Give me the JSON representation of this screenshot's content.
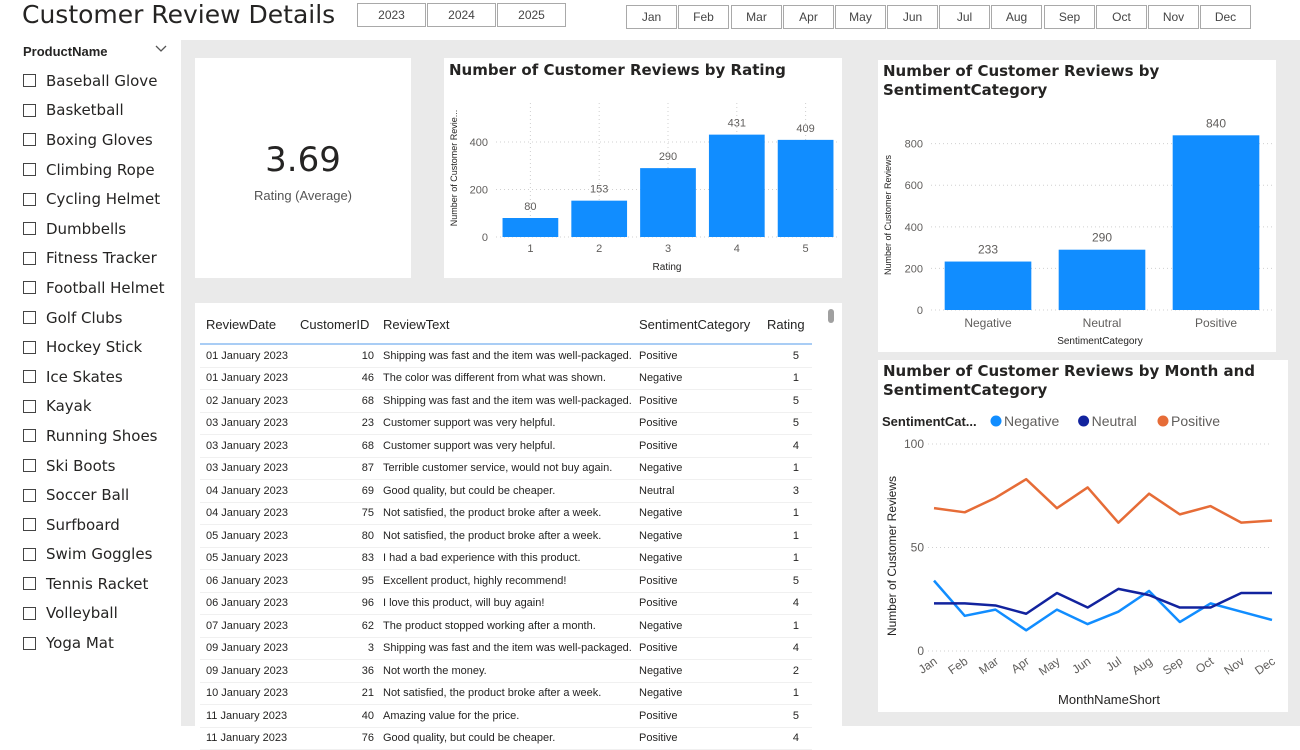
{
  "page": {
    "title": "Customer Review Details"
  },
  "years": [
    "2023",
    "2024",
    "2025"
  ],
  "months": [
    "Jan",
    "Feb",
    "Mar",
    "Apr",
    "May",
    "Jun",
    "Jul",
    "Aug",
    "Sep",
    "Oct",
    "Nov",
    "Dec"
  ],
  "slicer": {
    "title": "ProductName",
    "items": [
      "Baseball Glove",
      "Basketball",
      "Boxing Gloves",
      "Climbing Rope",
      "Cycling Helmet",
      "Dumbbells",
      "Fitness Tracker",
      "Football Helmet",
      "Golf Clubs",
      "Hockey Stick",
      "Ice Skates",
      "Kayak",
      "Running Shoes",
      "Ski Boots",
      "Soccer Ball",
      "Surfboard",
      "Swim Goggles",
      "Tennis Racket",
      "Volleyball",
      "Yoga Mat"
    ]
  },
  "kpi": {
    "value": "3.69",
    "label": "Rating (Average)"
  },
  "table": {
    "columns": [
      "ReviewDate",
      "CustomerID",
      "ReviewText",
      "SentimentCategory",
      "Rating"
    ],
    "rows": [
      [
        "01 January 2023",
        "10",
        "Shipping was fast and the item was well-packaged.",
        "Positive",
        "5"
      ],
      [
        "01 January 2023",
        "46",
        "The color was different from what was shown.",
        "Negative",
        "1"
      ],
      [
        "02 January 2023",
        "68",
        "Shipping was fast and the item was well-packaged.",
        "Positive",
        "5"
      ],
      [
        "03 January 2023",
        "23",
        "Customer support was very helpful.",
        "Positive",
        "5"
      ],
      [
        "03 January 2023",
        "68",
        "Customer support was very helpful.",
        "Positive",
        "4"
      ],
      [
        "03 January 2023",
        "87",
        "Terrible customer service, would not buy again.",
        "Negative",
        "1"
      ],
      [
        "04 January 2023",
        "69",
        "Good quality, but could be cheaper.",
        "Neutral",
        "3"
      ],
      [
        "04 January 2023",
        "75",
        "Not satisfied, the product broke after a week.",
        "Negative",
        "1"
      ],
      [
        "05 January 2023",
        "80",
        "Not satisfied, the product broke after a week.",
        "Negative",
        "1"
      ],
      [
        "05 January 2023",
        "83",
        "I had a bad experience with this product.",
        "Negative",
        "1"
      ],
      [
        "06 January 2023",
        "95",
        "Excellent product, highly recommend!",
        "Positive",
        "5"
      ],
      [
        "06 January 2023",
        "96",
        "I love this product, will buy again!",
        "Positive",
        "4"
      ],
      [
        "07 January 2023",
        "62",
        "The product stopped working after a month.",
        "Negative",
        "1"
      ],
      [
        "09 January 2023",
        "3",
        "Shipping was fast and the item was well-packaged.",
        "Positive",
        "4"
      ],
      [
        "09 January 2023",
        "36",
        "Not worth the money.",
        "Negative",
        "2"
      ],
      [
        "10 January 2023",
        "21",
        "Not satisfied, the product broke after a week.",
        "Negative",
        "1"
      ],
      [
        "11 January 2023",
        "40",
        "Amazing value for the price.",
        "Positive",
        "5"
      ],
      [
        "11 January 2023",
        "76",
        "Good quality, but could be cheaper.",
        "Positive",
        "4"
      ]
    ]
  },
  "chart_data": [
    {
      "type": "bar",
      "title": "Number of Customer Reviews by Rating",
      "xlabel": "Rating",
      "ylabel": "Number of Customer Revie...",
      "categories": [
        "1",
        "2",
        "3",
        "4",
        "5"
      ],
      "values": [
        80,
        153,
        290,
        431,
        409
      ],
      "yticks": [
        "0",
        "200",
        "400"
      ],
      "ylim": [
        0,
        480
      ],
      "color": "#118dff"
    },
    {
      "type": "bar",
      "title": "Number of Customer Reviews by SentimentCategory",
      "title_line1": "Number of Customer Reviews by",
      "title_line2": "SentimentCategory",
      "xlabel": "SentimentCategory",
      "ylabel": "Number of Customer Reviews",
      "categories": [
        "Negative",
        "Neutral",
        "Positive"
      ],
      "values": [
        233,
        290,
        840
      ],
      "yticks": [
        "0",
        "200",
        "400",
        "600",
        "800"
      ],
      "ylim": [
        0,
        880
      ],
      "color": "#118dff"
    },
    {
      "type": "line",
      "title": "Number of Customer Reviews by Month and SentimentCategory",
      "title_line1": "Number of Customer Reviews by Month and",
      "title_line2": "SentimentCategory",
      "xlabel": "MonthNameShort",
      "ylabel": "Number of Customer Reviews",
      "legend_title": "SentimentCat...",
      "categories": [
        "Jan",
        "Feb",
        "Mar",
        "Apr",
        "May",
        "Jun",
        "Jul",
        "Aug",
        "Sep",
        "Oct",
        "Nov",
        "Dec"
      ],
      "yticks": [
        "0",
        "50",
        "100"
      ],
      "ylim": [
        0,
        100
      ],
      "series": [
        {
          "name": "Negative",
          "color": "#118dff",
          "values": [
            34,
            17,
            20,
            10,
            20,
            13,
            19,
            29,
            14,
            23,
            19,
            15
          ]
        },
        {
          "name": "Neutral",
          "color": "#12239e",
          "values": [
            23,
            23,
            22,
            18,
            28,
            21,
            30,
            27,
            21,
            21,
            28,
            28
          ]
        },
        {
          "name": "Positive",
          "color": "#e66c37",
          "values": [
            69,
            67,
            74,
            83,
            69,
            79,
            62,
            76,
            66,
            70,
            62,
            63
          ]
        }
      ]
    }
  ]
}
